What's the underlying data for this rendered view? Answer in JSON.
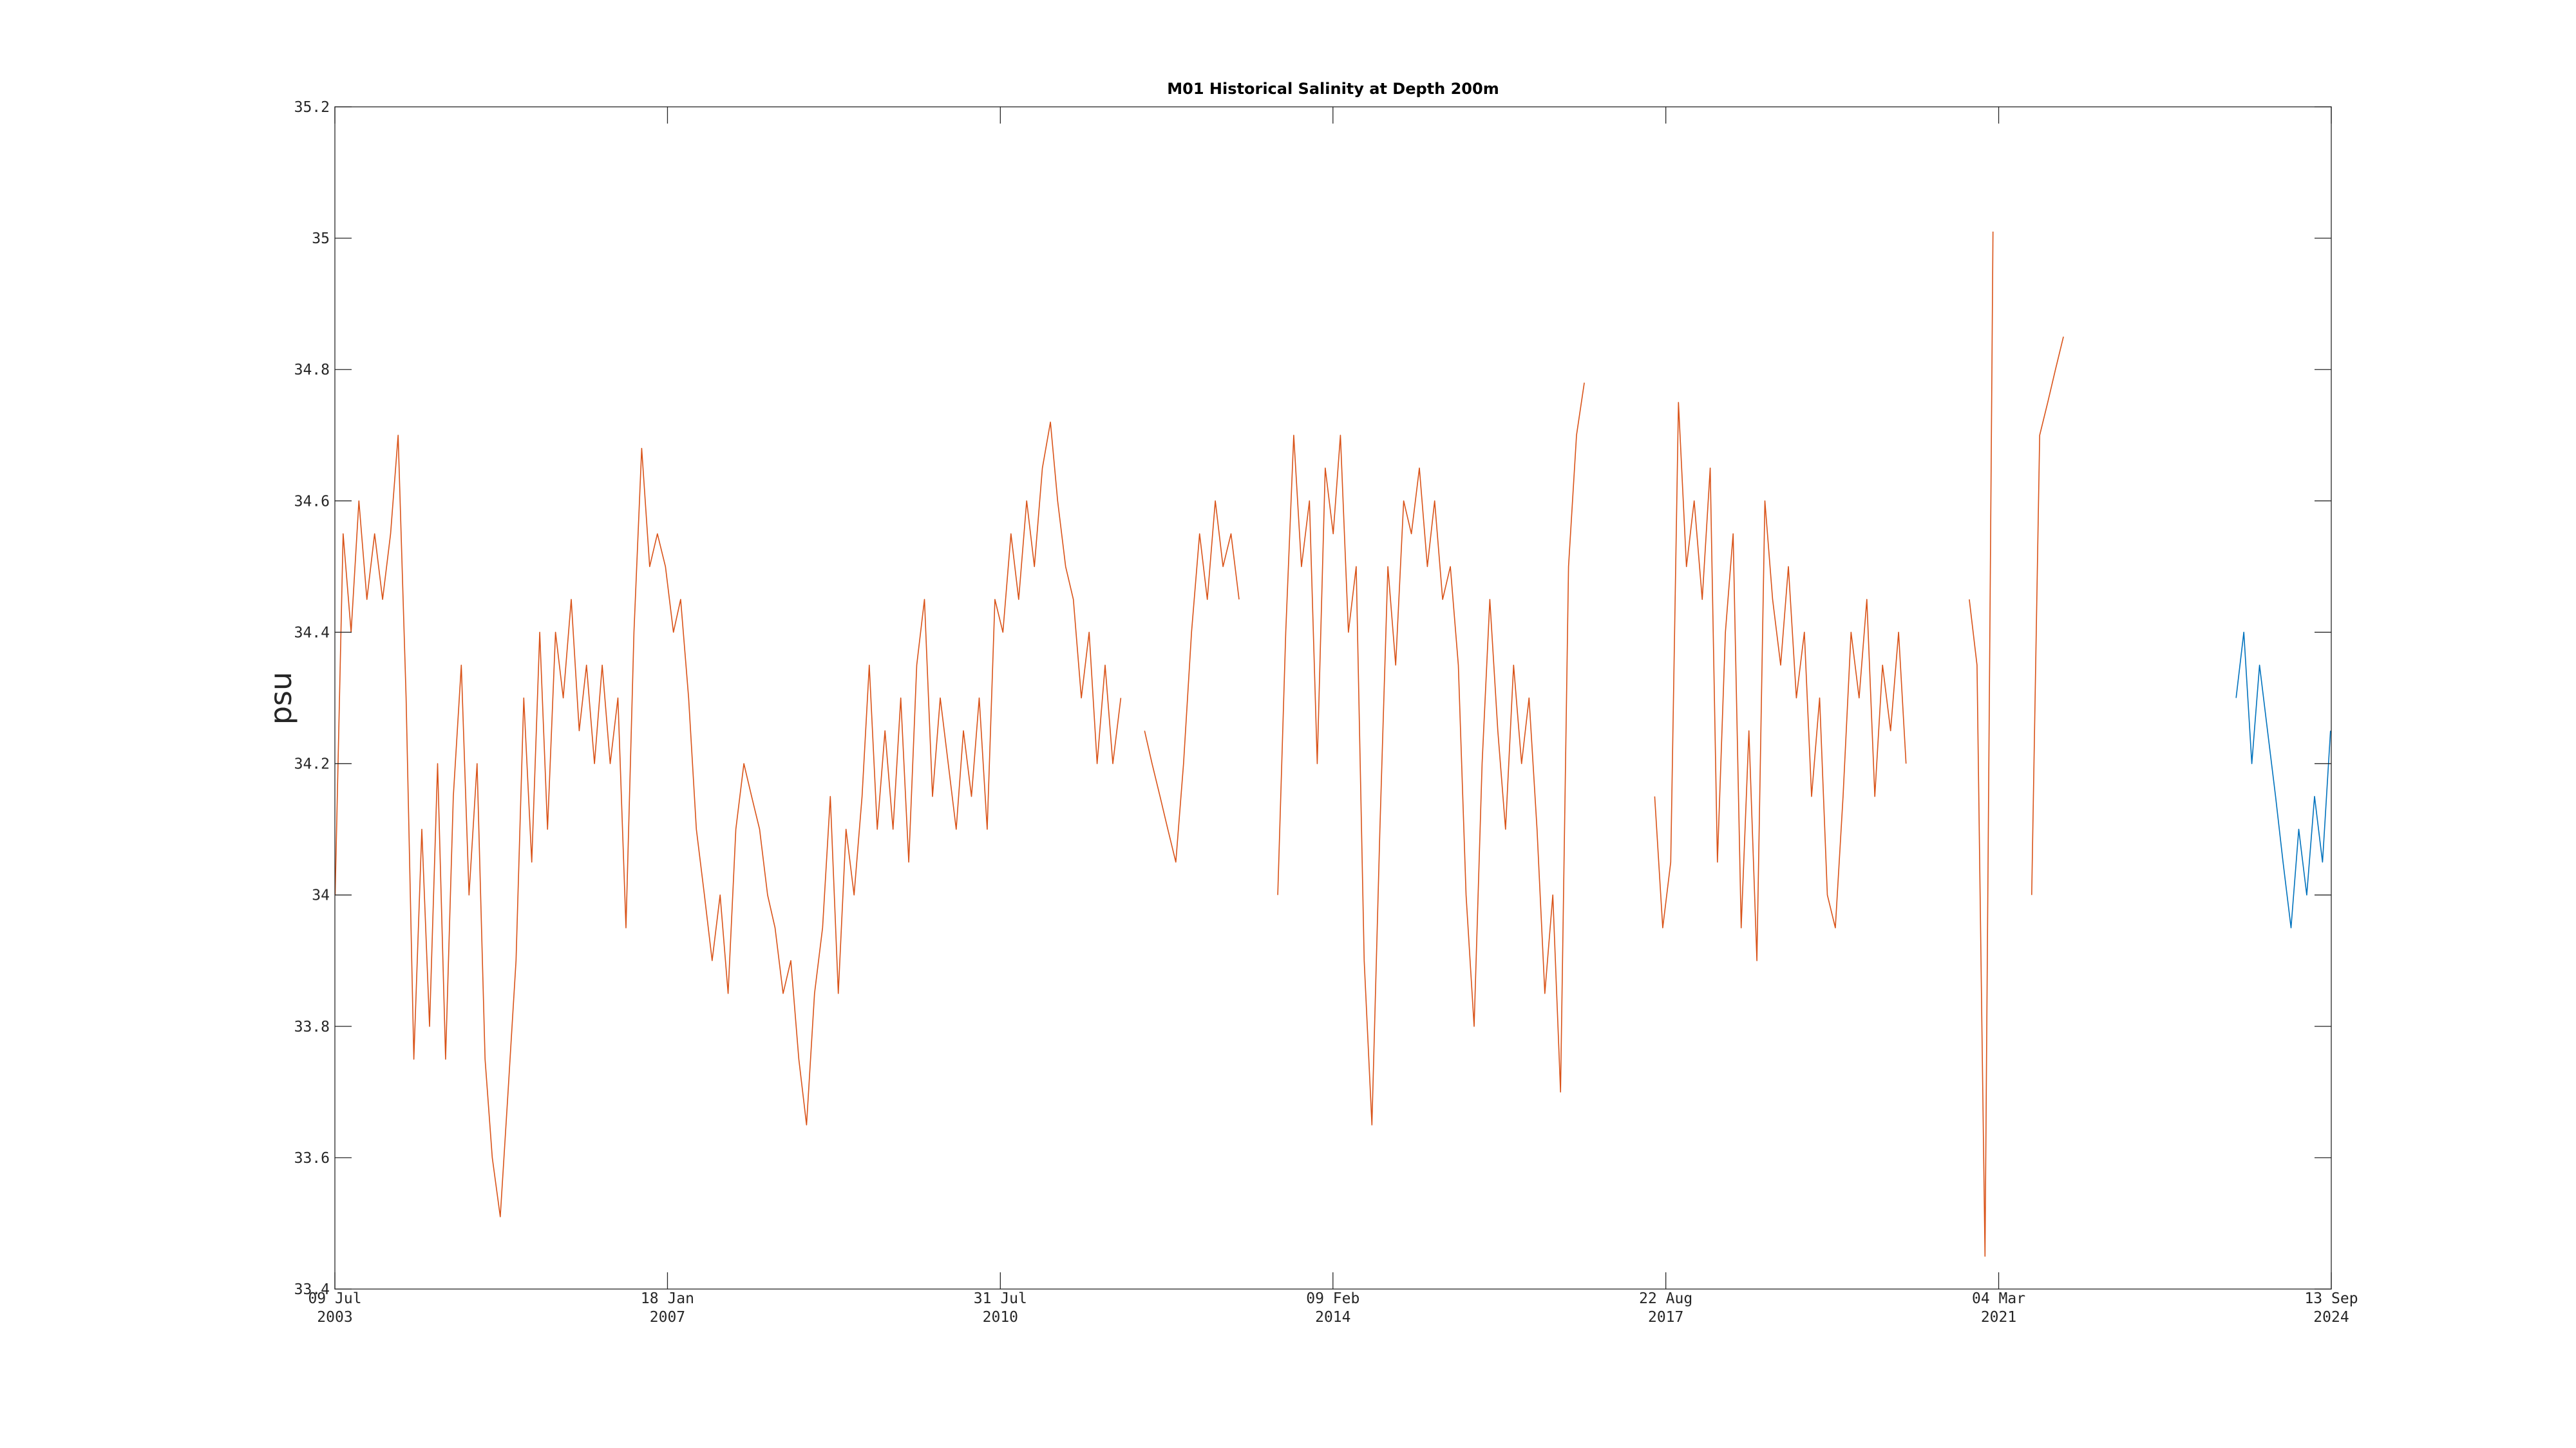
{
  "chart_data": {
    "type": "line",
    "title": "M01 Historical Salinity at Depth 200m",
    "y_label": "psu",
    "xlim": [
      "2003-07-09",
      "2024-09-13"
    ],
    "xticks": [
      {
        "value": "2003-07-09",
        "label": "09 Jul\n2003"
      },
      {
        "value": "2007-01-18",
        "label": "18 Jan\n2007"
      },
      {
        "value": "2010-07-31",
        "label": "31 Jul\n2010"
      },
      {
        "value": "2014-02-09",
        "label": "09 Feb\n2014"
      },
      {
        "value": "2017-08-22",
        "label": "22 Aug\n2017"
      },
      {
        "value": "2021-03-04",
        "label": "04 Mar\n2021"
      },
      {
        "value": "2024-09-13",
        "label": "13 Sep\n2024"
      }
    ],
    "ylim": [
      33.4,
      35.2
    ],
    "yticks": [
      33.4,
      33.6,
      33.8,
      34,
      34.2,
      34.4,
      34.6,
      34.8,
      35,
      35.2
    ],
    "x": [
      "2003-07-10",
      "2003-08-10",
      "2003-09-10",
      "2003-10-10",
      "2003-11-10",
      "2003-12-10",
      "2004-01-10",
      "2004-02-10",
      "2004-03-10",
      "2004-04-10",
      "2004-05-10",
      "2004-06-10",
      "2004-07-10",
      "2004-08-10",
      "2004-09-10",
      "2004-10-10",
      "2004-11-10",
      "2004-12-10",
      "2005-01-10",
      "2005-02-10",
      "2005-03-10",
      "2005-04-10",
      "2005-05-10",
      "2005-06-10",
      "2005-07-10",
      "2005-08-10",
      "2005-09-10",
      "2005-10-10",
      "2005-11-10",
      "2005-12-10",
      "2006-01-10",
      "2006-02-10",
      "2006-03-10",
      "2006-04-10",
      "2006-05-10",
      "2006-06-10",
      "2006-07-10",
      "2006-08-10",
      "2006-09-10",
      "2006-10-10",
      "2006-11-10",
      "2006-12-10",
      "2007-01-10",
      "2007-02-10",
      "2007-03-10",
      "2007-04-10",
      "2007-05-10",
      "2007-06-10",
      "2007-07-10",
      "2007-08-10",
      "2007-09-10",
      "2007-10-10",
      "2007-11-10",
      "2007-12-10",
      "2008-01-10",
      "2008-02-10",
      "2008-03-10",
      "2008-04-10",
      "2008-05-10",
      "2008-06-10",
      "2008-07-10",
      "2008-08-10",
      "2008-09-10",
      "2008-10-10",
      "2008-11-10",
      "2008-12-10",
      "2009-01-10",
      "2009-02-10",
      "2009-03-10",
      "2009-04-10",
      "2009-05-10",
      "2009-06-10",
      "2009-07-10",
      "2009-08-10",
      "2009-09-10",
      "2009-10-10",
      "2009-11-10",
      "2009-12-10",
      "2010-01-10",
      "2010-02-10",
      "2010-03-10",
      "2010-04-10",
      "2010-05-10",
      "2010-06-10",
      "2010-07-10",
      "2010-08-10",
      "2010-09-10",
      "2010-10-10",
      "2010-11-10",
      "2010-12-10",
      "2011-01-10",
      "2011-02-10",
      "2011-03-10",
      "2011-04-10",
      "2011-05-10",
      "2011-06-10",
      "2011-07-10",
      "2011-08-10",
      "2011-09-10",
      "2011-10-10",
      "2011-11-10",
      "2011-12-10",
      "2012-01-10",
      "2012-02-10",
      "2012-03-10",
      "2012-04-10",
      "2012-05-10",
      "2012-06-10",
      "2012-07-10",
      "2012-08-10",
      "2012-09-10",
      "2012-10-10",
      "2012-11-10",
      "2012-12-10",
      "2013-01-10",
      "2013-02-10",
      "2013-03-10",
      "2013-04-10",
      "2013-05-10",
      "2013-06-10",
      "2013-07-10",
      "2013-08-10",
      "2013-09-10",
      "2013-10-10",
      "2013-11-10",
      "2013-12-10",
      "2014-01-10",
      "2014-02-10",
      "2014-03-10",
      "2014-04-10",
      "2014-05-10",
      "2014-06-10",
      "2014-07-10",
      "2014-08-10",
      "2014-09-10",
      "2014-10-10",
      "2014-11-10",
      "2014-12-10",
      "2015-01-10",
      "2015-02-10",
      "2015-03-10",
      "2015-04-10",
      "2015-05-10",
      "2015-06-10",
      "2015-07-10",
      "2015-08-10",
      "2015-09-10",
      "2015-10-10",
      "2015-11-10",
      "2015-12-10",
      "2016-01-10",
      "2016-02-10",
      "2016-03-10",
      "2016-04-10",
      "2016-05-10",
      "2016-06-10",
      "2016-07-10",
      "2016-08-10",
      "2016-09-10",
      "2016-10-10",
      "2016-11-10",
      "2016-12-10",
      "2017-01-10",
      "2017-02-10",
      "2017-03-10",
      "2017-04-10",
      "2017-05-10",
      "2017-06-10",
      "2017-07-10",
      "2017-08-10",
      "2017-09-10",
      "2017-10-10",
      "2017-11-10",
      "2017-12-10",
      "2018-01-10",
      "2018-02-10",
      "2018-03-10",
      "2018-04-10",
      "2018-05-10",
      "2018-06-10",
      "2018-07-10",
      "2018-08-10",
      "2018-09-10",
      "2018-10-10",
      "2018-11-10",
      "2018-12-10",
      "2019-01-10",
      "2019-02-10",
      "2019-03-10",
      "2019-04-10",
      "2019-05-10",
      "2019-06-10",
      "2019-07-10",
      "2019-08-10",
      "2019-09-10",
      "2019-10-10",
      "2019-11-10",
      "2019-12-10",
      "2020-01-10",
      "2020-02-10",
      "2020-03-10",
      "2020-04-10",
      "2020-05-10",
      "2020-06-10",
      "2020-07-10",
      "2020-08-10",
      "2020-09-10",
      "2020-10-10",
      "2020-11-10",
      "2020-12-10",
      "2021-01-10",
      "2021-02-10",
      "2021-03-10",
      "2021-04-10",
      "2021-05-10",
      "2021-06-10",
      "2021-07-10",
      "2021-08-10",
      "2021-09-10",
      "2021-10-10",
      "2021-11-10",
      "2021-12-10",
      "2022-01-10",
      "2022-02-10",
      "2022-03-10",
      "2022-04-10",
      "2022-05-10",
      "2022-06-10",
      "2022-07-10",
      "2022-08-10",
      "2022-09-10",
      "2022-10-10",
      "2022-11-10",
      "2022-12-10",
      "2023-01-10",
      "2023-02-10",
      "2023-03-10",
      "2023-04-10",
      "2023-05-10",
      "2023-06-10",
      "2023-07-10",
      "2023-08-10",
      "2023-09-10",
      "2023-10-10",
      "2023-11-10",
      "2023-12-10",
      "2024-01-10",
      "2024-02-10",
      "2024-03-10",
      "2024-04-10",
      "2024-05-10",
      "2024-06-10",
      "2024-07-10",
      "2024-08-10",
      "2024-09-10"
    ],
    "series": [
      {
        "color": "#d95319",
        "values": [
          34.0,
          34.55,
          34.4,
          34.6,
          34.45,
          34.55,
          34.45,
          34.55,
          34.7,
          34.3,
          33.75,
          34.1,
          33.8,
          34.2,
          33.75,
          34.15,
          34.35,
          34.0,
          34.2,
          33.75,
          33.6,
          33.51,
          33.7,
          33.9,
          34.3,
          34.05,
          34.4,
          34.1,
          34.4,
          34.3,
          34.45,
          34.25,
          34.35,
          34.2,
          34.35,
          34.2,
          34.3,
          33.95,
          34.4,
          34.68,
          34.5,
          34.55,
          34.5,
          34.4,
          34.45,
          34.3,
          34.1,
          34.0,
          33.9,
          34.0,
          33.85,
          34.1,
          34.2,
          34.15,
          34.1,
          34.0,
          33.95,
          33.85,
          33.9,
          33.75,
          33.65,
          33.85,
          33.95,
          34.15,
          33.85,
          34.1,
          34.0,
          34.15,
          34.35,
          34.1,
          34.25,
          34.1,
          34.3,
          34.05,
          34.35,
          34.45,
          34.15,
          34.3,
          34.2,
          34.1,
          34.25,
          34.15,
          34.3,
          34.1,
          34.45,
          34.4,
          34.55,
          34.45,
          34.6,
          34.5,
          34.65,
          34.72,
          34.6,
          34.5,
          34.45,
          34.3,
          34.4,
          34.2,
          34.35,
          34.2,
          34.3,
          null,
          null,
          34.25,
          34.2,
          34.15,
          34.1,
          34.05,
          34.2,
          34.4,
          34.55,
          34.45,
          34.6,
          34.5,
          34.55,
          34.45,
          null,
          null,
          null,
          null,
          34.0,
          34.4,
          34.7,
          34.5,
          34.6,
          34.2,
          34.65,
          34.55,
          34.7,
          34.4,
          34.5,
          33.9,
          33.65,
          34.1,
          34.5,
          34.35,
          34.6,
          34.55,
          34.65,
          34.5,
          34.6,
          34.45,
          34.5,
          34.35,
          34.0,
          33.8,
          34.2,
          34.45,
          34.25,
          34.1,
          34.35,
          34.2,
          34.3,
          34.1,
          33.85,
          34.0,
          33.7,
          34.5,
          34.7,
          34.78,
          null,
          null,
          null,
          null,
          null,
          null,
          null,
          null,
          34.15,
          33.95,
          34.05,
          34.75,
          34.5,
          34.6,
          34.45,
          34.65,
          34.05,
          34.4,
          34.55,
          33.95,
          34.25,
          33.9,
          34.6,
          34.45,
          34.35,
          34.5,
          34.3,
          34.4,
          34.15,
          34.3,
          34.0,
          33.95,
          34.15,
          34.4,
          34.3,
          34.45,
          34.15,
          34.35,
          34.25,
          34.4,
          34.2,
          null,
          null,
          null,
          null,
          null,
          null,
          null,
          34.45,
          34.35,
          33.45,
          35.01,
          null,
          null,
          null,
          null,
          34.0,
          34.7,
          34.75,
          34.8,
          34.85,
          null,
          null,
          null,
          null,
          null,
          null,
          null,
          null,
          null,
          null,
          null,
          null,
          null,
          null,
          null,
          null,
          null,
          null,
          null,
          null,
          null,
          null,
          null,
          null,
          null,
          null,
          null,
          null,
          null,
          null,
          null,
          null,
          null,
          null
        ]
      },
      {
        "color": "#0072bd",
        "values": [
          null,
          null,
          null,
          null,
          null,
          null,
          null,
          null,
          null,
          null,
          null,
          null,
          null,
          null,
          null,
          null,
          null,
          null,
          null,
          null,
          null,
          null,
          null,
          null,
          null,
          null,
          null,
          null,
          null,
          null,
          null,
          null,
          null,
          null,
          null,
          null,
          null,
          null,
          null,
          null,
          null,
          null,
          null,
          null,
          null,
          null,
          null,
          null,
          null,
          null,
          null,
          null,
          null,
          null,
          null,
          null,
          null,
          null,
          null,
          null,
          null,
          null,
          null,
          null,
          null,
          null,
          null,
          null,
          null,
          null,
          null,
          null,
          null,
          null,
          null,
          null,
          null,
          null,
          null,
          null,
          null,
          null,
          null,
          null,
          null,
          null,
          null,
          null,
          null,
          null,
          null,
          null,
          null,
          null,
          null,
          null,
          null,
          null,
          null,
          null,
          null,
          null,
          null,
          null,
          null,
          null,
          null,
          null,
          null,
          null,
          null,
          null,
          null,
          null,
          null,
          null,
          null,
          null,
          null,
          null,
          null,
          null,
          null,
          null,
          null,
          null,
          null,
          null,
          null,
          null,
          null,
          null,
          null,
          null,
          null,
          null,
          null,
          null,
          null,
          null,
          null,
          null,
          null,
          null,
          null,
          null,
          null,
          null,
          null,
          null,
          null,
          null,
          null,
          null,
          null,
          null,
          null,
          null,
          null,
          null,
          null,
          null,
          null,
          null,
          null,
          null,
          null,
          null,
          null,
          null,
          null,
          null,
          null,
          null,
          null,
          null,
          null,
          null,
          null,
          null,
          null,
          null,
          null,
          null,
          null,
          null,
          null,
          null,
          null,
          null,
          null,
          null,
          null,
          null,
          null,
          null,
          null,
          null,
          null,
          null,
          null,
          null,
          null,
          null,
          null,
          null,
          null,
          null,
          null,
          null,
          null,
          null,
          null,
          null,
          null,
          null,
          null,
          null,
          null,
          null,
          null,
          null,
          null,
          null,
          null,
          null,
          null,
          null,
          null,
          null,
          null,
          null,
          null,
          null,
          null,
          null,
          null,
          null,
          null,
          null,
          null,
          null,
          34.3,
          34.4,
          34.2,
          34.35,
          34.25,
          34.15,
          34.05,
          33.95,
          34.1,
          34.0,
          34.15,
          34.05,
          34.25
        ]
      }
    ]
  }
}
